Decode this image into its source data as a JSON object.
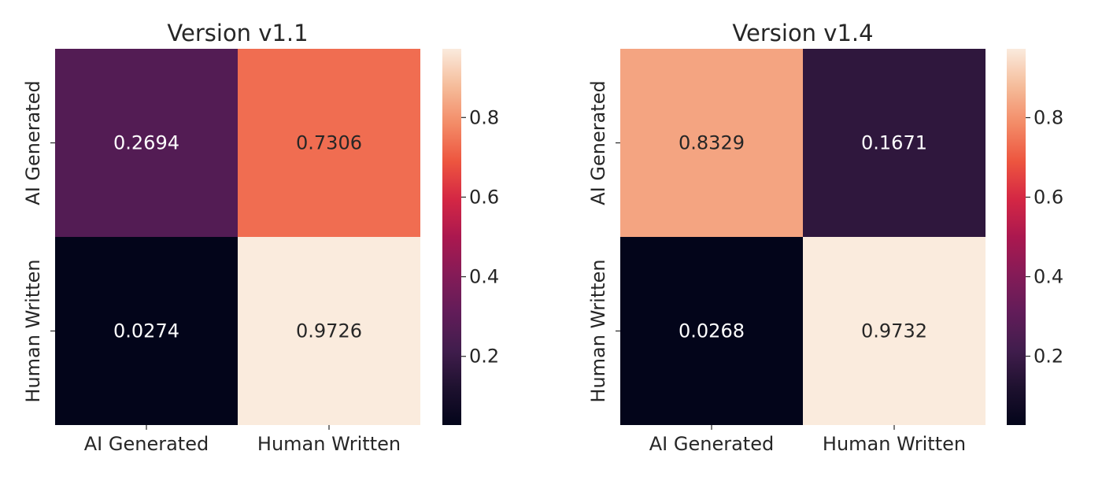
{
  "chart_data": [
    {
      "type": "heatmap",
      "title": "Version v1.1",
      "x_categories": [
        "AI Generated",
        "Human Written"
      ],
      "y_categories": [
        "AI Generated",
        "Human Written"
      ],
      "values": [
        [
          0.2694,
          0.7306
        ],
        [
          0.0274,
          0.9726
        ]
      ],
      "value_labels": [
        [
          "0.2694",
          "0.7306"
        ],
        [
          "0.0274",
          "0.9726"
        ]
      ],
      "colorbar": {
        "range": [
          0.0274,
          0.9726
        ],
        "ticks": [
          0.2,
          0.4,
          0.6,
          0.8
        ],
        "tick_labels": [
          "0.2",
          "0.4",
          "0.6",
          "0.8"
        ],
        "colormap": "rocket"
      },
      "xlabel": "",
      "ylabel": ""
    },
    {
      "type": "heatmap",
      "title": "Version v1.4",
      "x_categories": [
        "AI Generated",
        "Human Written"
      ],
      "y_categories": [
        "AI Generated",
        "Human Written"
      ],
      "values": [
        [
          0.8329,
          0.1671
        ],
        [
          0.0268,
          0.9732
        ]
      ],
      "value_labels": [
        [
          "0.8329",
          "0.1671"
        ],
        [
          "0.0268",
          "0.9732"
        ]
      ],
      "colorbar": {
        "range": [
          0.0268,
          0.9732
        ],
        "ticks": [
          0.2,
          0.4,
          0.6,
          0.8
        ],
        "tick_labels": [
          "0.2",
          "0.4",
          "0.6",
          "0.8"
        ],
        "colormap": "rocket"
      },
      "xlabel": "",
      "ylabel": ""
    }
  ]
}
